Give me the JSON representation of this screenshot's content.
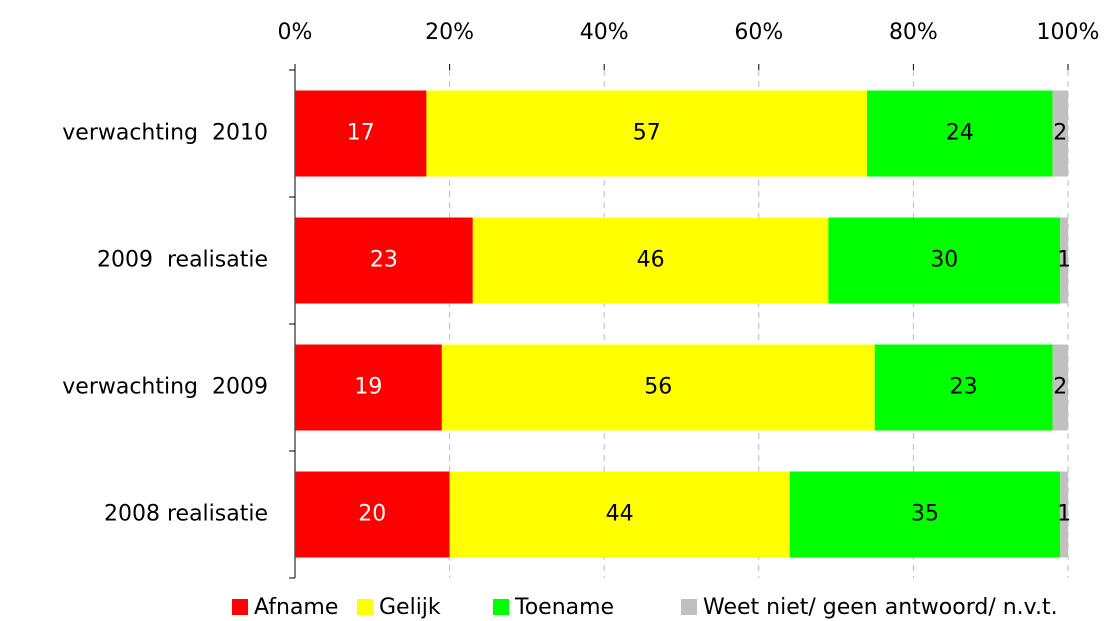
{
  "chart_data": {
    "type": "stacked_barh",
    "categories": [
      "verwachting  2010",
      "2009  realisatie",
      "verwachting  2009",
      "2008 realisatie"
    ],
    "series": [
      {
        "name": "Afname",
        "color": "#ff0000",
        "label_color": "#ffffff",
        "values": [
          17,
          23,
          19,
          20
        ]
      },
      {
        "name": "Gelijk",
        "color": "#ffff00",
        "label_color": "#000000",
        "values": [
          57,
          46,
          56,
          44
        ]
      },
      {
        "name": "Toename",
        "color": "#00ff00",
        "label_color": "#000000",
        "values": [
          24,
          30,
          23,
          35
        ]
      },
      {
        "name": "Weet niet/ geen antwoord/ n.v.t.",
        "color": "#c0c0c0",
        "label_color": "#000000",
        "values": [
          2,
          1,
          2,
          1
        ]
      }
    ],
    "xlim": [
      0,
      100
    ],
    "xticks": [
      {
        "value": 0,
        "label": "0%"
      },
      {
        "value": 20,
        "label": "20%"
      },
      {
        "value": 40,
        "label": "40%"
      },
      {
        "value": 60,
        "label": "60%"
      },
      {
        "value": 80,
        "label": "80%"
      },
      {
        "value": 100,
        "label": "100%"
      }
    ],
    "grid": true,
    "legend": "bottom"
  }
}
